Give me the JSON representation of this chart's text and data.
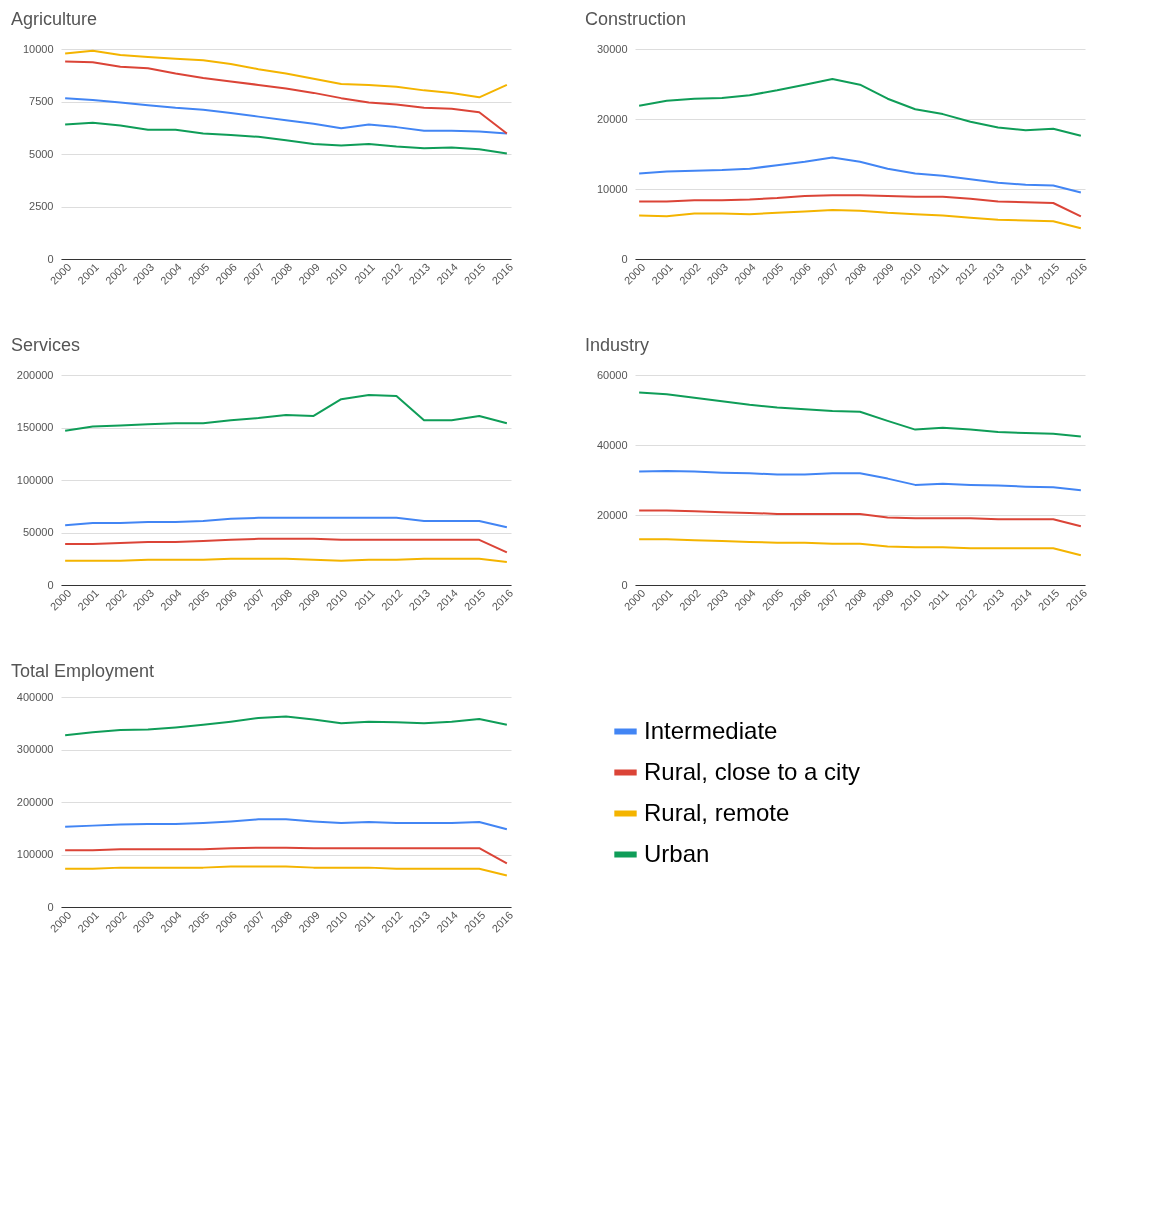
{
  "chart_data": [
    {
      "type": "line",
      "title": "Agriculture",
      "categories": [
        "2000",
        "2001",
        "2002",
        "2003",
        "2004",
        "2005",
        "2006",
        "2007",
        "2008",
        "2009",
        "2010",
        "2011",
        "2012",
        "2013",
        "2014",
        "2015",
        "2016"
      ],
      "ylim": [
        0,
        10000
      ],
      "yticks": [
        0,
        2500,
        5000,
        7500,
        10000
      ],
      "grid": "y",
      "series": [
        {
          "color": "#4285f4",
          "values": [
            7660,
            7570,
            7450,
            7320,
            7200,
            7110,
            6950,
            6780,
            6610,
            6440,
            6230,
            6400,
            6280,
            6110,
            6110,
            6070,
            5980
          ]
        },
        {
          "color": "#db4437",
          "values": [
            9410,
            9370,
            9160,
            9080,
            8830,
            8620,
            8450,
            8290,
            8120,
            7910,
            7660,
            7450,
            7360,
            7200,
            7150,
            6990,
            5980
          ]
        },
        {
          "color": "#f4b400",
          "values": [
            9790,
            9920,
            9710,
            9620,
            9540,
            9460,
            9290,
            9040,
            8830,
            8580,
            8330,
            8290,
            8200,
            8030,
            7910,
            7700,
            8290
          ]
        },
        {
          "color": "#0f9d58",
          "values": [
            6400,
            6490,
            6360,
            6150,
            6150,
            5980,
            5900,
            5820,
            5650,
            5480,
            5400,
            5480,
            5360,
            5270,
            5310,
            5230,
            5020
          ]
        }
      ]
    },
    {
      "type": "line",
      "title": "Construction",
      "categories": [
        "2000",
        "2001",
        "2002",
        "2003",
        "2004",
        "2005",
        "2006",
        "2007",
        "2008",
        "2009",
        "2010",
        "2011",
        "2012",
        "2013",
        "2014",
        "2015",
        "2016"
      ],
      "ylim": [
        0,
        30000
      ],
      "yticks": [
        0,
        10000,
        20000,
        30000
      ],
      "grid": "y",
      "series": [
        {
          "color": "#4285f4",
          "values": [
            12200,
            12500,
            12600,
            12700,
            12900,
            13400,
            13900,
            14500,
            13900,
            12900,
            12200,
            11900,
            11400,
            10900,
            10600,
            10500,
            9500
          ]
        },
        {
          "color": "#db4437",
          "values": [
            8200,
            8200,
            8400,
            8400,
            8500,
            8700,
            9000,
            9100,
            9100,
            9000,
            8900,
            8900,
            8600,
            8200,
            8100,
            8000,
            6100
          ]
        },
        {
          "color": "#f4b400",
          "values": [
            6200,
            6100,
            6500,
            6500,
            6400,
            6600,
            6800,
            7000,
            6900,
            6600,
            6400,
            6200,
            5900,
            5600,
            5500,
            5400,
            4400
          ]
        },
        {
          "color": "#0f9d58",
          "values": [
            21900,
            22600,
            22900,
            23000,
            23400,
            24100,
            24900,
            25700,
            24900,
            22900,
            21400,
            20700,
            19600,
            18800,
            18400,
            18600,
            17600
          ]
        }
      ]
    },
    {
      "type": "line",
      "title": "Services",
      "categories": [
        "2000",
        "2001",
        "2002",
        "2003",
        "2004",
        "2005",
        "2006",
        "2007",
        "2008",
        "2009",
        "2010",
        "2011",
        "2012",
        "2013",
        "2014",
        "2015",
        "2016"
      ],
      "ylim": [
        0,
        200000
      ],
      "yticks": [
        0,
        50000,
        100000,
        150000,
        200000
      ],
      "grid": "y",
      "series": [
        {
          "color": "#4285f4",
          "values": [
            57000,
            59000,
            59000,
            60000,
            60000,
            61000,
            63000,
            64000,
            64000,
            64000,
            64000,
            64000,
            64000,
            61000,
            61000,
            61000,
            55000
          ]
        },
        {
          "color": "#db4437",
          "values": [
            39000,
            39000,
            40000,
            41000,
            41000,
            42000,
            43000,
            44000,
            44000,
            44000,
            43000,
            43000,
            43000,
            43000,
            43000,
            43000,
            31000
          ]
        },
        {
          "color": "#f4b400",
          "values": [
            23000,
            23000,
            23000,
            24000,
            24000,
            24000,
            25000,
            25000,
            25000,
            24000,
            23000,
            24000,
            24000,
            25000,
            25000,
            25000,
            22000
          ]
        },
        {
          "color": "#0f9d58",
          "values": [
            147000,
            151000,
            152000,
            153000,
            154000,
            154000,
            157000,
            159000,
            162000,
            161000,
            177000,
            181000,
            180000,
            157000,
            157000,
            161000,
            154000
          ]
        }
      ]
    },
    {
      "type": "line",
      "title": "Industry",
      "categories": [
        "2000",
        "2001",
        "2002",
        "2003",
        "2004",
        "2005",
        "2006",
        "2007",
        "2008",
        "2009",
        "2010",
        "2011",
        "2012",
        "2013",
        "2014",
        "2015",
        "2016"
      ],
      "ylim": [
        0,
        60000
      ],
      "yticks": [
        0,
        20000,
        40000,
        60000
      ],
      "grid": "y",
      "series": [
        {
          "color": "#4285f4",
          "values": [
            32400,
            32600,
            32400,
            32100,
            31900,
            31600,
            31600,
            31900,
            31900,
            30400,
            28600,
            28900,
            28600,
            28400,
            28100,
            27900,
            27100
          ]
        },
        {
          "color": "#db4437",
          "values": [
            21300,
            21300,
            21100,
            20800,
            20600,
            20300,
            20300,
            20300,
            20300,
            19300,
            19100,
            19100,
            19100,
            18800,
            18800,
            18800,
            16800
          ]
        },
        {
          "color": "#f4b400",
          "values": [
            13100,
            13100,
            12800,
            12600,
            12300,
            12100,
            12100,
            11800,
            11800,
            11000,
            10800,
            10800,
            10500,
            10500,
            10500,
            10500,
            8500
          ]
        },
        {
          "color": "#0f9d58",
          "values": [
            55000,
            54500,
            53500,
            52500,
            51500,
            50700,
            50200,
            49700,
            49500,
            46900,
            44400,
            44900,
            44400,
            43700,
            43400,
            43200,
            42400
          ]
        }
      ]
    },
    {
      "type": "line",
      "title": "Total Employment",
      "categories": [
        "2000",
        "2001",
        "2002",
        "2003",
        "2004",
        "2005",
        "2006",
        "2007",
        "2008",
        "2009",
        "2010",
        "2011",
        "2012",
        "2013",
        "2014",
        "2015",
        "2016"
      ],
      "ylim": [
        0,
        400000
      ],
      "yticks": [
        0,
        100000,
        200000,
        300000,
        400000
      ],
      "grid": "y",
      "legend": "right",
      "series": [
        {
          "name": "Intermediate",
          "color": "#4285f4",
          "values": [
            153000,
            155000,
            157000,
            158000,
            158000,
            160000,
            163000,
            167000,
            167000,
            163000,
            160000,
            162000,
            160000,
            160000,
            160000,
            162000,
            148000
          ]
        },
        {
          "name": "Rural, close to a city",
          "color": "#db4437",
          "values": [
            108000,
            108000,
            110000,
            110000,
            110000,
            110000,
            112000,
            113000,
            113000,
            112000,
            112000,
            112000,
            112000,
            112000,
            112000,
            112000,
            83000
          ]
        },
        {
          "name": "Rural, remote",
          "color": "#f4b400",
          "values": [
            73000,
            73000,
            75000,
            75000,
            75000,
            75000,
            77000,
            77000,
            77000,
            75000,
            75000,
            75000,
            73000,
            73000,
            73000,
            73000,
            60000
          ]
        },
        {
          "name": "Urban",
          "color": "#0f9d58",
          "values": [
            327000,
            333000,
            337000,
            338000,
            342000,
            347000,
            353000,
            360000,
            363000,
            357000,
            350000,
            353000,
            352000,
            350000,
            353000,
            358000,
            347000
          ]
        }
      ]
    }
  ]
}
